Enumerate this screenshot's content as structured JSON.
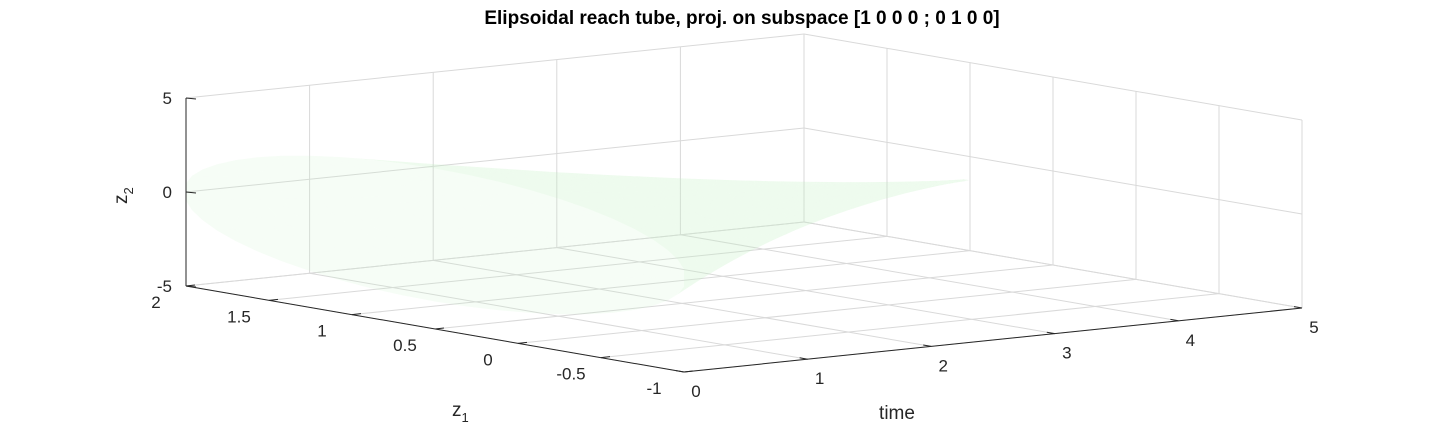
{
  "chart_data": {
    "type": "surface3d",
    "title": "Elipsoidal reach tube, proj. on subspace [1 0 0 0 ; 0 1 0 0]",
    "xlabel": "time",
    "ylabel_base": "z",
    "ylabel_sub": "1",
    "zlabel_base": "z",
    "zlabel_sub": "2",
    "xlim": [
      0,
      5
    ],
    "ylim": [
      -1,
      2
    ],
    "zlim": [
      -5,
      5
    ],
    "x_ticks": [
      0,
      1,
      2,
      3,
      4,
      5
    ],
    "x_tick_labels": [
      "0",
      "1",
      "2",
      "3",
      "4",
      "5"
    ],
    "y_ticks": [
      -1,
      -0.5,
      0,
      0.5,
      1,
      1.5,
      2
    ],
    "y_tick_labels": [
      "-1",
      "-0.5",
      "0",
      "0.5",
      "1",
      "1.5",
      "2"
    ],
    "z_ticks": [
      -5,
      0,
      5
    ],
    "z_tick_labels": [
      "-5",
      "0",
      "5"
    ],
    "grid": true,
    "surface_color": "#c8f5c8",
    "surface_edge_color": "#b4ecb4",
    "tube": {
      "center_z1": 0.5,
      "center_z2": 0,
      "initial_time": 0,
      "final_time": 4.3,
      "initial_z1_semi_axis": 1.5,
      "initial_z2_semi_axis": 3.5,
      "tilt_rate": 0.45
    }
  }
}
